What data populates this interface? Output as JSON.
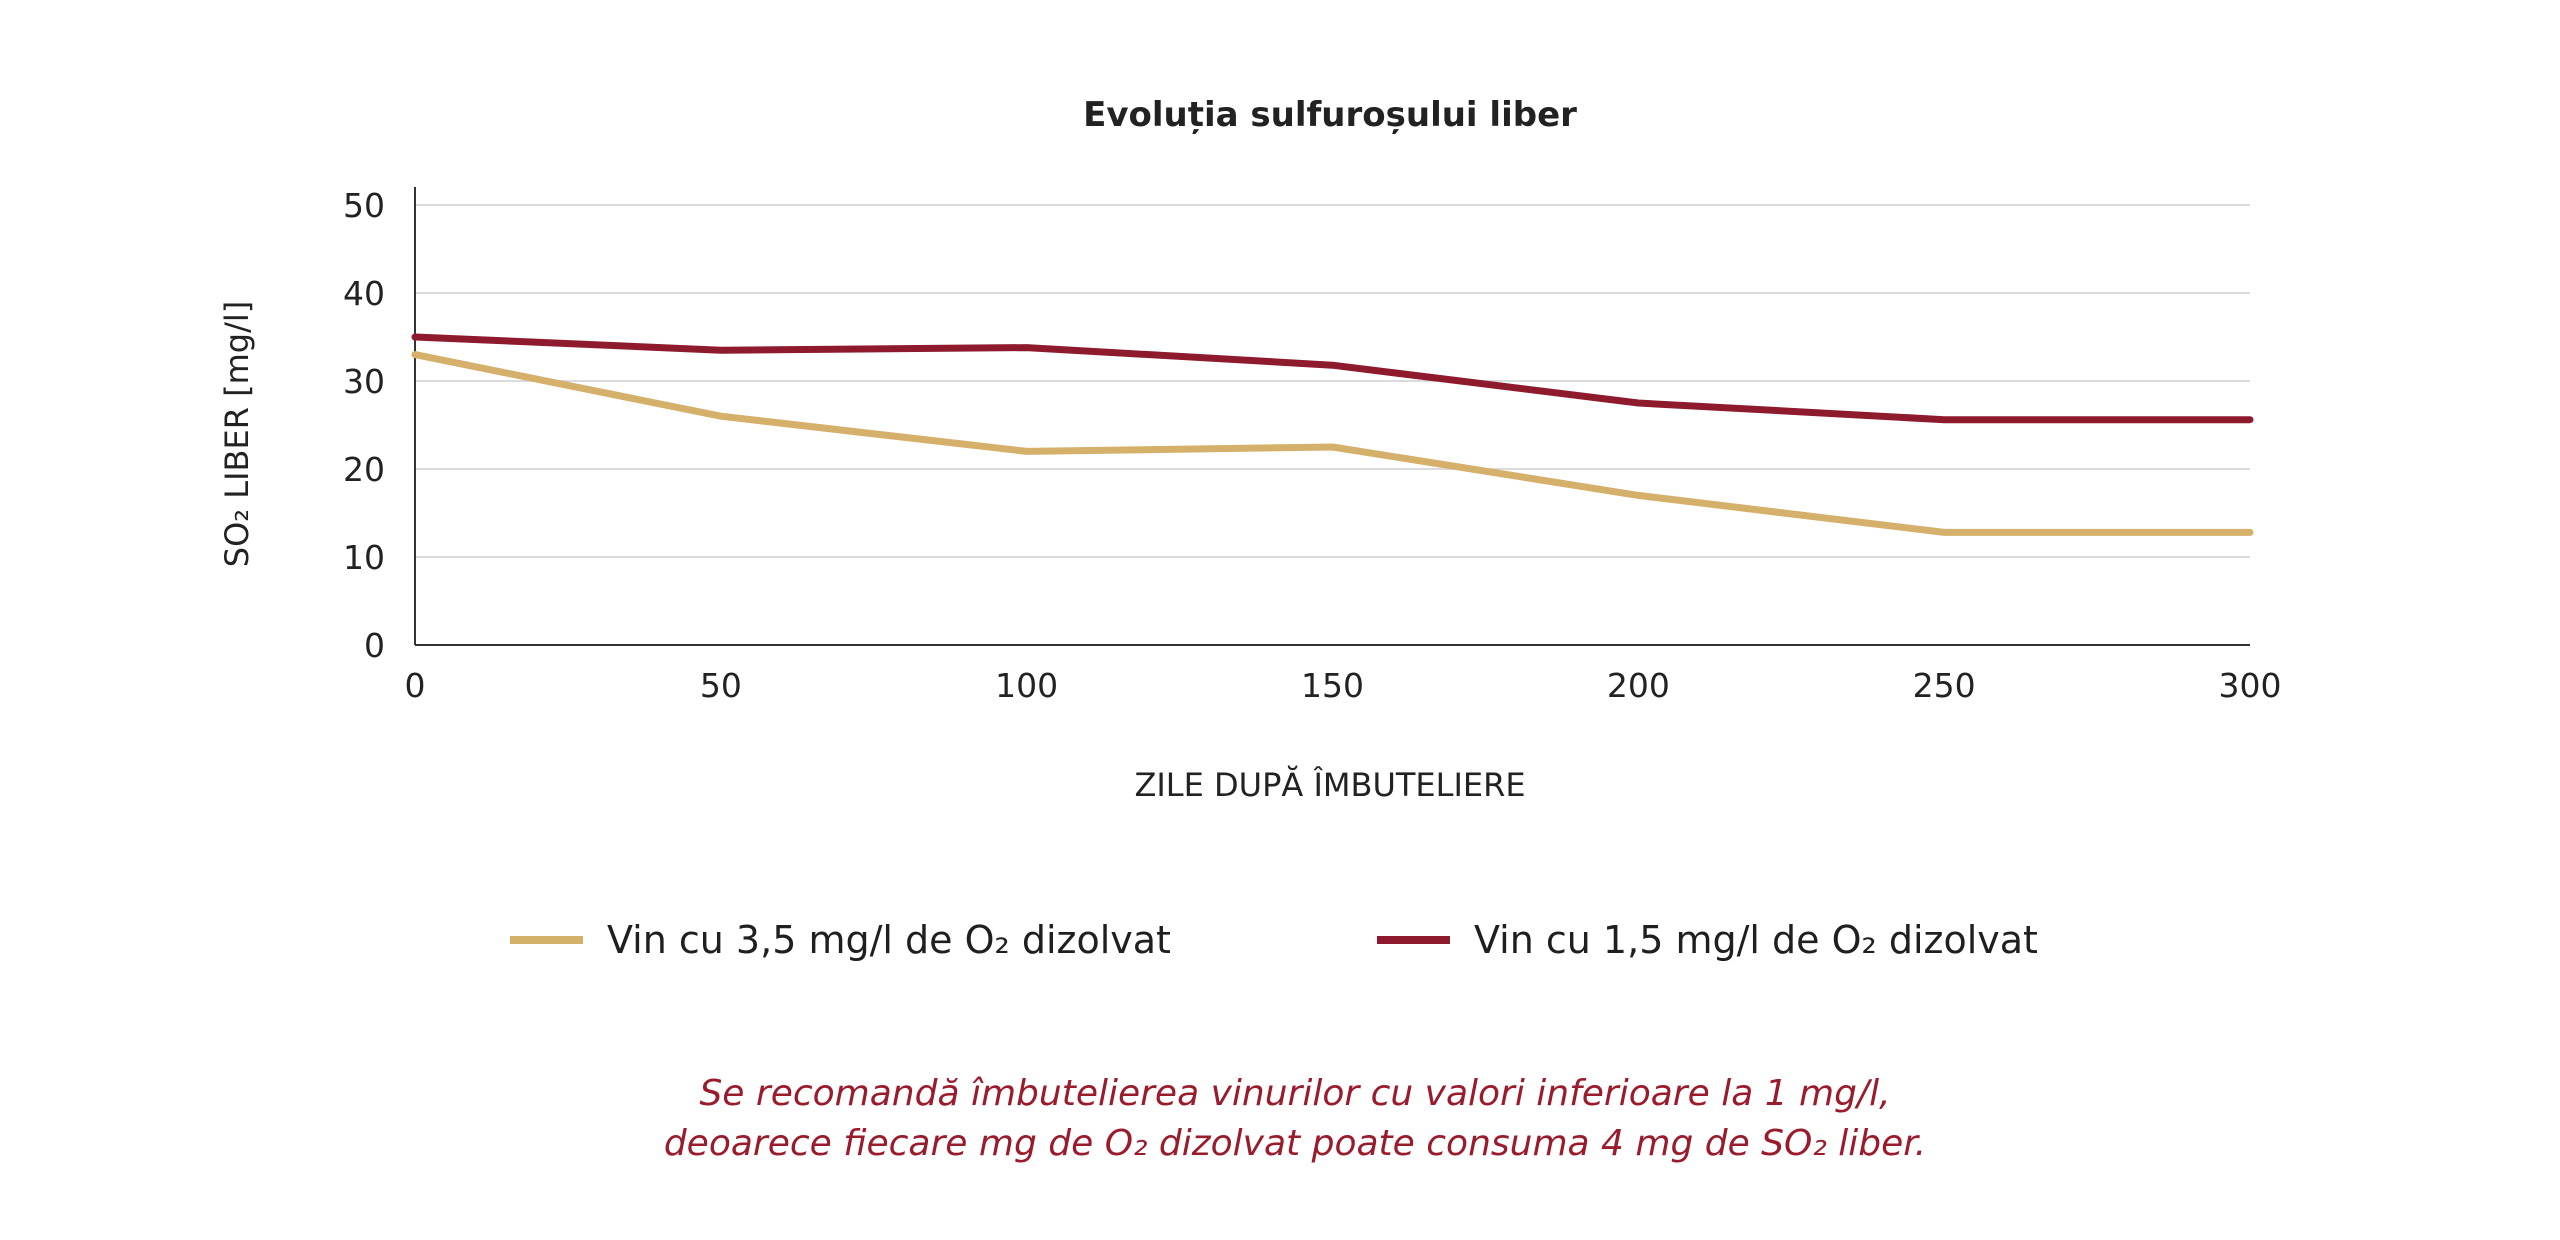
{
  "chart_data": {
    "type": "line",
    "title": "Evoluția sulfuroșului liber",
    "xlabel": "ZILE DUPĂ ÎMBUTELIERE",
    "ylabel": "SO₂ LIBER [mg/l]",
    "xlim": [
      0,
      300
    ],
    "ylim": [
      0,
      50
    ],
    "xticks": [
      0,
      50,
      100,
      150,
      200,
      250,
      300
    ],
    "yticks": [
      0,
      10,
      20,
      30,
      40,
      50
    ],
    "grid": true,
    "legend_position": "bottom",
    "series": [
      {
        "name": "Vin cu 3,5 mg/l de O₂ dizolvat",
        "color": "#d4b06a",
        "x": [
          0,
          50,
          100,
          150,
          200,
          250,
          300
        ],
        "y": [
          33,
          26,
          22,
          22.5,
          17,
          12.8,
          12.8
        ]
      },
      {
        "name": "Vin cu 1,5 mg/l de O₂ dizolvat",
        "color": "#8e1b2d",
        "x": [
          0,
          50,
          100,
          150,
          200,
          250,
          300
        ],
        "y": [
          35,
          33.5,
          33.8,
          31.8,
          27.5,
          25.6,
          25.6
        ]
      }
    ],
    "annotation": [
      "Se recomandă îmbutelierea vinurilor cu valori inferioare la 1 mg/l,",
      "deoarece fiecare mg  de O₂ dizolvat poate consuma 4 mg de SO₂ liber."
    ]
  }
}
